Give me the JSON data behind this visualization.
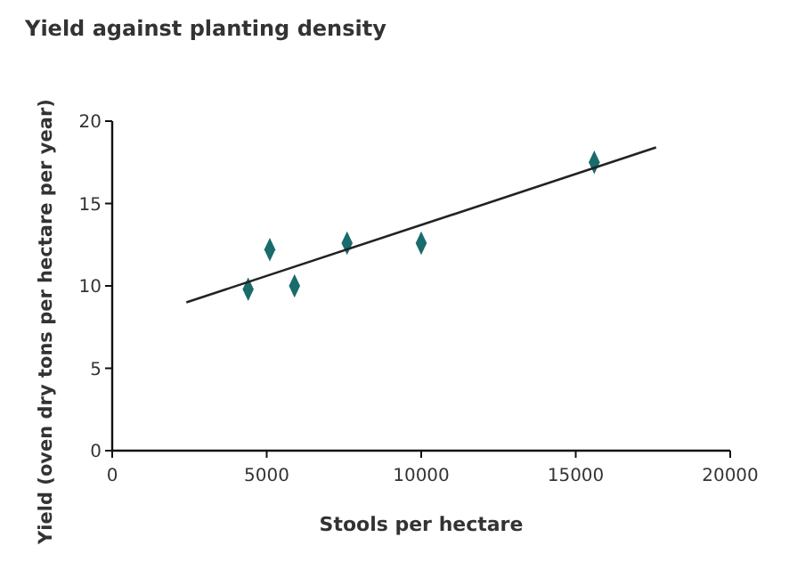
{
  "chart_data": {
    "type": "scatter",
    "title": "Yield against planting density",
    "xlabel": "Stools per hectare",
    "ylabel": "Yield (oven dry tons per hectare per year)",
    "xlim": [
      0,
      20000
    ],
    "xticks": [
      0,
      5000,
      10000,
      15000,
      20000
    ],
    "ylim": [
      0,
      20
    ],
    "yticks": [
      0,
      5,
      10,
      15,
      20
    ],
    "grid": false,
    "series": [
      {
        "color": "#1a6b6b",
        "marker": "diamond",
        "x": [
          4400,
          5100,
          5900,
          7600,
          10000,
          15600
        ],
        "values": [
          9.8,
          12.2,
          10.0,
          12.6,
          12.6,
          17.5
        ]
      },
      {
        "type": "line",
        "marker": "none",
        "color": "#222222",
        "x": [
          2400,
          17600
        ],
        "values": [
          9.0,
          18.4
        ]
      }
    ]
  }
}
